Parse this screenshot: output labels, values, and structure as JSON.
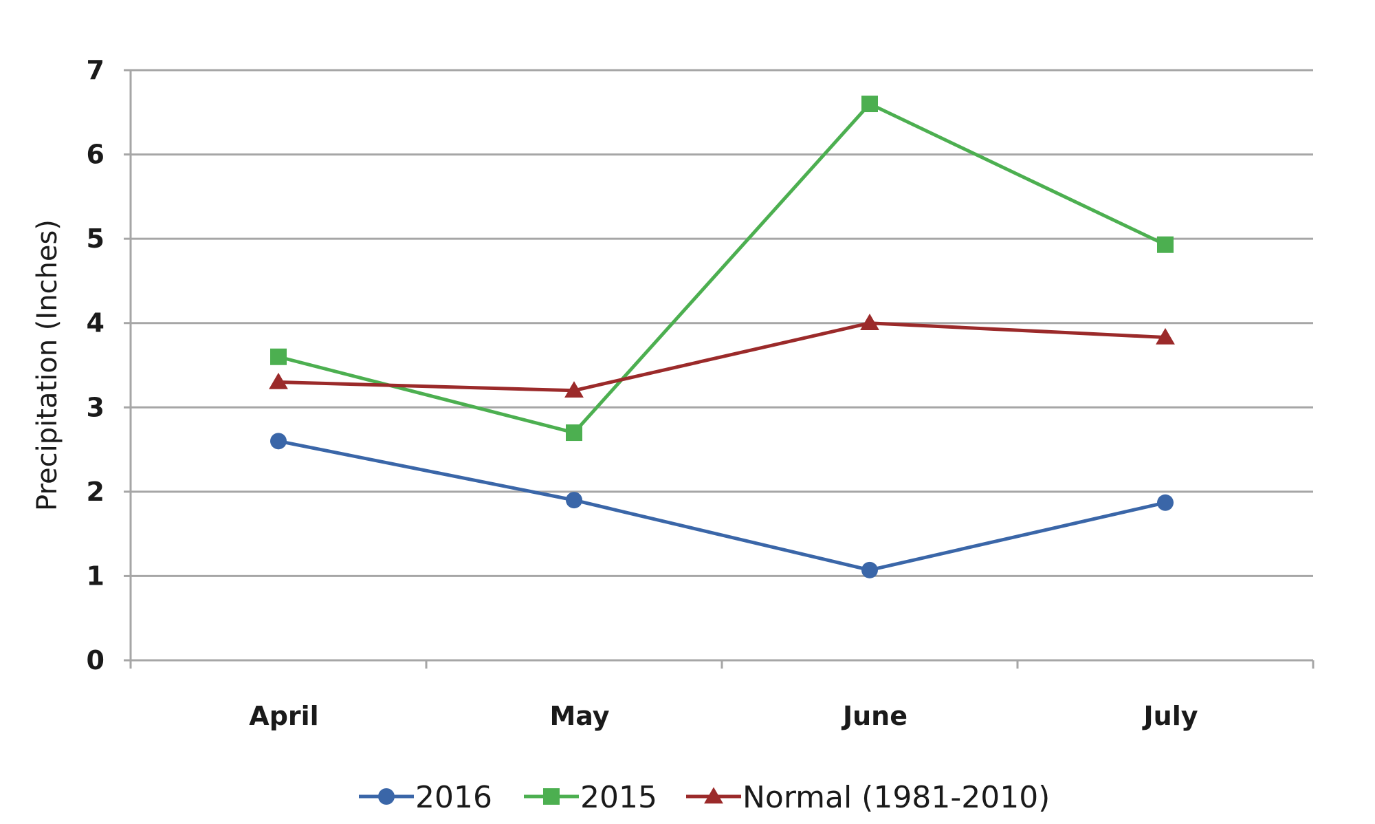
{
  "chart_data": {
    "type": "line",
    "title": "",
    "xlabel": "",
    "ylabel": "Precipitation (Inches)",
    "categories": [
      "April",
      "May",
      "June",
      "July"
    ],
    "ylim": [
      0,
      7
    ],
    "yticks": [
      0,
      1,
      2,
      3,
      4,
      5,
      6,
      7
    ],
    "grid": "horizontal",
    "legend": "bottom",
    "series": [
      {
        "name": "2016",
        "values": [
          2.6,
          1.9,
          1.07,
          1.87
        ],
        "color": "#3a66a8",
        "marker": "circle"
      },
      {
        "name": "2015",
        "values": [
          3.6,
          2.7,
          6.6,
          4.93
        ],
        "color": "#4caf50",
        "marker": "square"
      },
      {
        "name": "Normal (1981-2010)",
        "values": [
          3.3,
          3.2,
          4.0,
          3.83
        ],
        "color": "#9b2a2a",
        "marker": "triangle"
      }
    ]
  }
}
